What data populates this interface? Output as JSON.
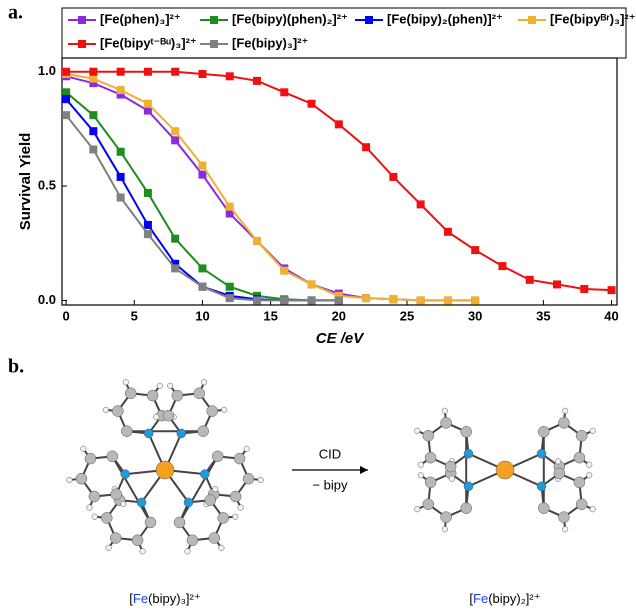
{
  "panel_a": "a.",
  "panel_b": "b.",
  "chart_data": {
    "type": "line",
    "xlabel": "CE /eV",
    "ylabel": "Survival Yield",
    "xlim": [
      -0.3,
      40.4
    ],
    "ylim": [
      -0.02,
      1.06
    ],
    "xticks": [
      0,
      5,
      10,
      15,
      20,
      25,
      30,
      35,
      40
    ],
    "yticks": [
      {
        "value": 0,
        "label": "0.0"
      },
      {
        "value": 0.5,
        "label": "0.5"
      },
      {
        "value": 1,
        "label": "1.0"
      }
    ],
    "series": [
      {
        "name": "[Fe(phen)₃]²⁺",
        "color": "#8a2be2",
        "x": [
          0,
          2,
          4,
          6,
          8,
          10,
          12,
          14,
          16,
          18,
          20,
          22,
          24,
          26,
          28,
          30
        ],
        "values": [
          0.98,
          0.95,
          0.9,
          0.83,
          0.7,
          0.55,
          0.38,
          0.26,
          0.14,
          0.07,
          0.03,
          0.01,
          0.005,
          0,
          0,
          0
        ]
      },
      {
        "name": "[Fe(bipy)(phen)₂]²⁺",
        "color": "#1e8c1e",
        "x": [
          0,
          2,
          4,
          6,
          8,
          10,
          12,
          14,
          16,
          18,
          20
        ],
        "values": [
          0.91,
          0.81,
          0.65,
          0.47,
          0.27,
          0.14,
          0.06,
          0.02,
          0.005,
          0,
          0
        ]
      },
      {
        "name": "[Fe(bipy)₂(phen)]²⁺",
        "color": "#0000ff",
        "x": [
          0,
          2,
          4,
          6,
          8,
          10,
          12,
          14,
          16,
          18,
          20
        ],
        "values": [
          0.88,
          0.74,
          0.54,
          0.33,
          0.16,
          0.06,
          0.02,
          0.005,
          0,
          0,
          0
        ]
      },
      {
        "name": "[Fe(bipyᴮʳ)₃]²⁺",
        "color": "#f0b030",
        "x": [
          0,
          2,
          4,
          6,
          8,
          10,
          12,
          14,
          16,
          18,
          20,
          22,
          24,
          26,
          28,
          30
        ],
        "values": [
          0.99,
          0.97,
          0.92,
          0.86,
          0.74,
          0.59,
          0.41,
          0.26,
          0.13,
          0.07,
          0.02,
          0.01,
          0.005,
          0,
          0,
          0
        ]
      },
      {
        "name": "[Fe(bipyᵗ⁻ᴮᵘ)₃]²⁺",
        "color": "#ee1111",
        "x": [
          0,
          2,
          4,
          6,
          8,
          10,
          12,
          14,
          16,
          18,
          20,
          22,
          24,
          26,
          28,
          30,
          32,
          34,
          36,
          38,
          40
        ],
        "values": [
          1,
          1,
          1,
          1,
          1,
          0.99,
          0.98,
          0.96,
          0.91,
          0.86,
          0.77,
          0.67,
          0.54,
          0.42,
          0.3,
          0.22,
          0.15,
          0.09,
          0.07,
          0.05,
          0.045
        ]
      },
      {
        "name": "[Fe(bipy)₃]²⁺",
        "color": "#808080",
        "x": [
          0,
          2,
          4,
          6,
          8,
          10,
          12,
          14,
          16,
          18,
          20
        ],
        "values": [
          0.81,
          0.66,
          0.45,
          0.29,
          0.14,
          0.06,
          0.01,
          0,
          0,
          0,
          0
        ]
      }
    ]
  },
  "diagram": {
    "arrow_top": "CID",
    "arrow_bottom": "− bipy",
    "left_caption": [
      "[",
      "Fe",
      "(bipy)₃]²⁺"
    ],
    "right_caption": [
      "[",
      "Fe",
      "(bipy)₂]²⁺"
    ]
  }
}
